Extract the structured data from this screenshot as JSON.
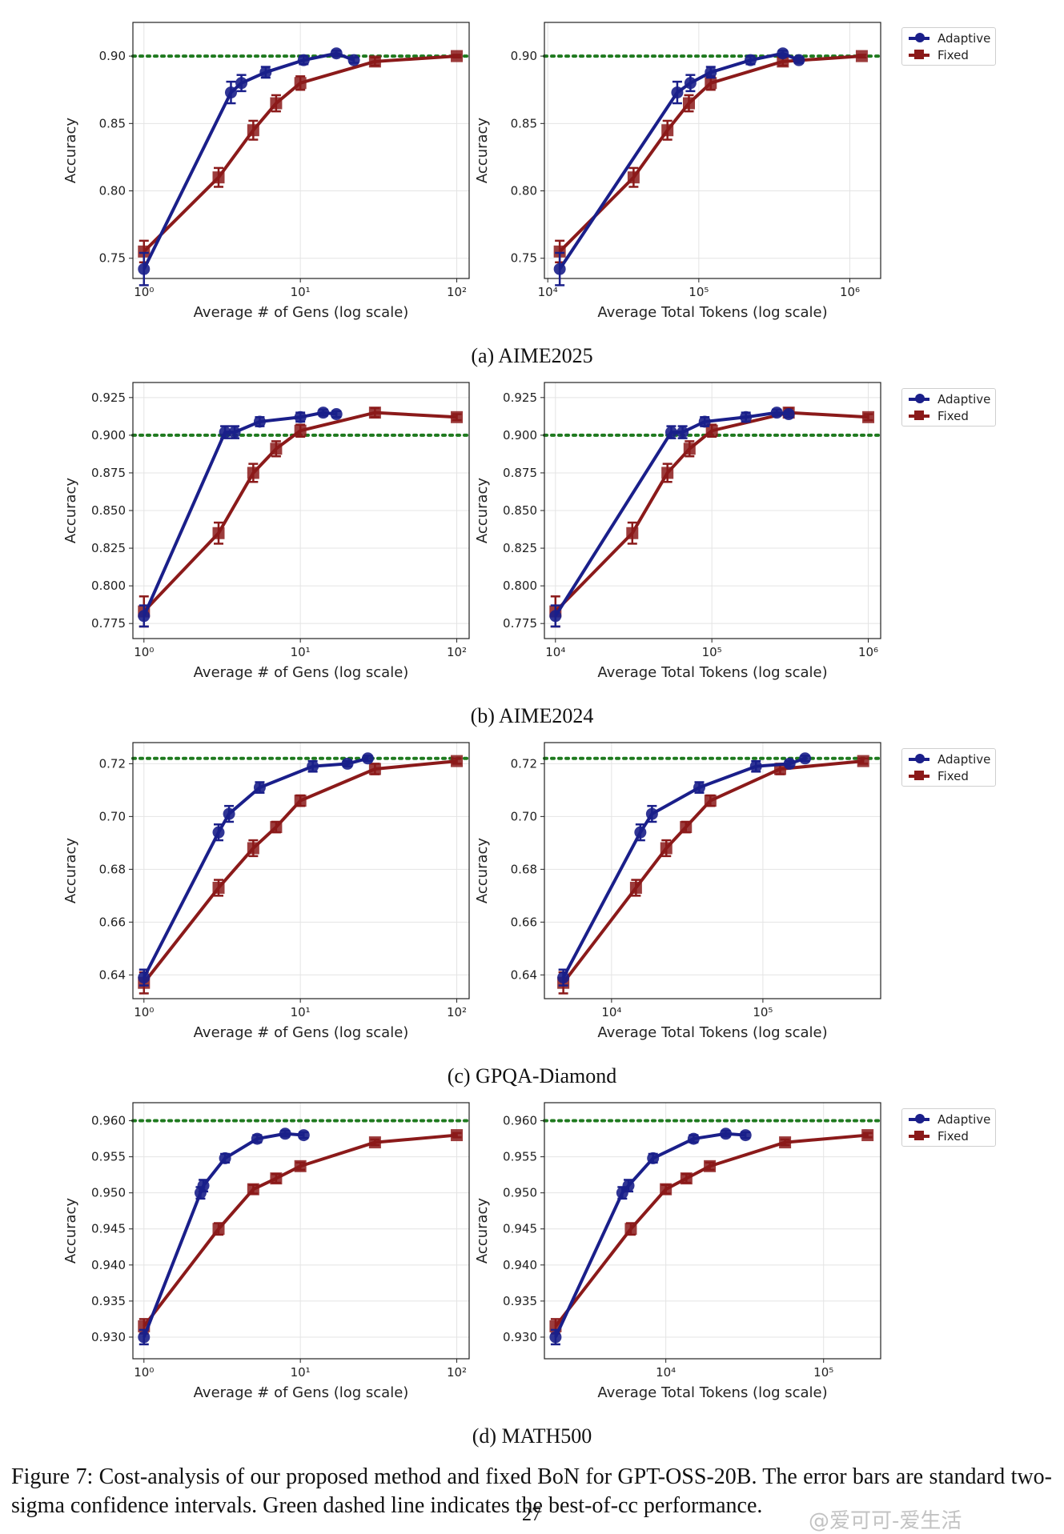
{
  "colors": {
    "adaptive": "#1a1f8a",
    "fixed": "#8b1a1a",
    "best": "#1f7a1f"
  },
  "legend": {
    "adaptive": "Adaptive",
    "fixed": "Fixed"
  },
  "subcaptions": [
    "(a) AIME2025",
    "(b) AIME2024",
    "(c) GPQA-Diamond",
    "(d) MATH500"
  ],
  "caption": "Figure 7: Cost-analysis of our proposed method and fixed BoN for GPT-OSS-20B. The error bars are standard two-sigma confidence intervals. Green dashed line indicates the best-of-cc performance.",
  "page_number": "27",
  "watermark": "@爱可可-爱生活",
  "chart_data": [
    {
      "type": "line",
      "xscale": "log",
      "xlabel": "Average # of Gens (log scale)",
      "ylabel": "Accuracy",
      "xlim": [
        0.85,
        120
      ],
      "ylim": [
        0.735,
        0.925
      ],
      "yticks": [
        0.75,
        0.8,
        0.85,
        0.9
      ],
      "ytick_labels": [
        "0.75",
        "0.80",
        "0.85",
        "0.90"
      ],
      "xticks": [
        1,
        10,
        100
      ],
      "xtick_labels": [
        "10⁰",
        "10¹",
        "10²"
      ],
      "best": 0.9,
      "series": [
        {
          "name": "Adaptive",
          "x": [
            1,
            3.6,
            4.2,
            6,
            10.5,
            17,
            22
          ],
          "y": [
            0.742,
            0.873,
            0.88,
            0.888,
            0.897,
            0.902,
            0.897
          ],
          "err": [
            0.012,
            0.008,
            0.006,
            0.004,
            0.003,
            0.002,
            0.002
          ]
        },
        {
          "name": "Fixed",
          "x": [
            1,
            3,
            5,
            7,
            10,
            30,
            100
          ],
          "y": [
            0.755,
            0.81,
            0.845,
            0.865,
            0.88,
            0.896,
            0.9
          ],
          "err": [
            0.008,
            0.007,
            0.007,
            0.006,
            0.005,
            0.003,
            0.001
          ]
        }
      ]
    },
    {
      "type": "line",
      "xscale": "log",
      "xlabel": "Average Total Tokens (log scale)",
      "ylabel": "Accuracy",
      "xlim": [
        9500,
        1600000
      ],
      "ylim": [
        0.735,
        0.925
      ],
      "yticks": [
        0.75,
        0.8,
        0.85,
        0.9
      ],
      "ytick_labels": [
        "0.75",
        "0.80",
        "0.85",
        "0.90"
      ],
      "xticks": [
        10000,
        100000,
        1000000
      ],
      "xtick_labels": [
        "10⁴",
        "10⁵",
        "10⁶"
      ],
      "best": 0.9,
      "series": [
        {
          "name": "Adaptive",
          "x": [
            12000,
            72000,
            88000,
            120000,
            220000,
            360000,
            460000
          ],
          "y": [
            0.742,
            0.873,
            0.88,
            0.888,
            0.897,
            0.902,
            0.897
          ],
          "err": [
            0.012,
            0.008,
            0.006,
            0.004,
            0.003,
            0.002,
            0.002
          ]
        },
        {
          "name": "Fixed",
          "x": [
            12000,
            37000,
            62000,
            86000,
            120000,
            360000,
            1200000
          ],
          "y": [
            0.755,
            0.81,
            0.845,
            0.865,
            0.88,
            0.896,
            0.9
          ],
          "err": [
            0.008,
            0.007,
            0.007,
            0.006,
            0.005,
            0.003,
            0.001
          ]
        }
      ]
    },
    {
      "type": "line",
      "xscale": "log",
      "xlabel": "Average # of Gens (log scale)",
      "ylabel": "Accuracy",
      "xlim": [
        0.85,
        120
      ],
      "ylim": [
        0.765,
        0.935
      ],
      "yticks": [
        0.775,
        0.8,
        0.825,
        0.85,
        0.875,
        0.9,
        0.925
      ],
      "ytick_labels": [
        "0.775",
        "0.800",
        "0.825",
        "0.850",
        "0.875",
        "0.900",
        "0.925"
      ],
      "xticks": [
        1,
        10,
        100
      ],
      "xtick_labels": [
        "10⁰",
        "10¹",
        "10²"
      ],
      "best": 0.9,
      "series": [
        {
          "name": "Adaptive",
          "x": [
            1,
            3.3,
            3.8,
            5.5,
            10,
            14,
            17
          ],
          "y": [
            0.78,
            0.902,
            0.902,
            0.909,
            0.912,
            0.915,
            0.914
          ],
          "err": [
            0.007,
            0.004,
            0.004,
            0.003,
            0.003,
            0.002,
            0.002
          ]
        },
        {
          "name": "Fixed",
          "x": [
            1,
            3,
            5,
            7,
            10,
            30,
            100
          ],
          "y": [
            0.783,
            0.835,
            0.875,
            0.891,
            0.903,
            0.915,
            0.912
          ],
          "err": [
            0.01,
            0.007,
            0.006,
            0.005,
            0.004,
            0.003,
            0.002
          ]
        }
      ]
    },
    {
      "type": "line",
      "xscale": "log",
      "xlabel": "Average Total Tokens (log scale)",
      "ylabel": "Accuracy",
      "xlim": [
        8500,
        1200000
      ],
      "ylim": [
        0.765,
        0.935
      ],
      "yticks": [
        0.775,
        0.8,
        0.825,
        0.85,
        0.875,
        0.9,
        0.925
      ],
      "ytick_labels": [
        "0.775",
        "0.800",
        "0.825",
        "0.850",
        "0.875",
        "0.900",
        "0.925"
      ],
      "xticks": [
        10000,
        100000,
        1000000
      ],
      "xtick_labels": [
        "10⁴",
        "10⁵",
        "10⁶"
      ],
      "best": 0.9,
      "series": [
        {
          "name": "Adaptive",
          "x": [
            10000,
            55000,
            65000,
            90000,
            165000,
            260000,
            310000
          ],
          "y": [
            0.78,
            0.902,
            0.902,
            0.909,
            0.912,
            0.915,
            0.914
          ],
          "err": [
            0.007,
            0.004,
            0.004,
            0.003,
            0.003,
            0.002,
            0.002
          ]
        },
        {
          "name": "Fixed",
          "x": [
            10000,
            31000,
            52000,
            72000,
            100000,
            310000,
            1000000
          ],
          "y": [
            0.783,
            0.835,
            0.875,
            0.891,
            0.903,
            0.915,
            0.912
          ],
          "err": [
            0.01,
            0.007,
            0.006,
            0.005,
            0.004,
            0.003,
            0.002
          ]
        }
      ]
    },
    {
      "type": "line",
      "xscale": "log",
      "xlabel": "Average # of Gens (log scale)",
      "ylabel": "Accuracy",
      "xlim": [
        0.85,
        120
      ],
      "ylim": [
        0.631,
        0.728
      ],
      "yticks": [
        0.64,
        0.66,
        0.68,
        0.7,
        0.72
      ],
      "ytick_labels": [
        "0.64",
        "0.66",
        "0.68",
        "0.70",
        "0.72"
      ],
      "xticks": [
        1,
        10,
        100
      ],
      "xtick_labels": [
        "10⁰",
        "10¹",
        "10²"
      ],
      "best": 0.722,
      "series": [
        {
          "name": "Adaptive",
          "x": [
            1,
            3,
            3.5,
            5.5,
            12,
            20,
            27
          ],
          "y": [
            0.639,
            0.694,
            0.701,
            0.711,
            0.719,
            0.72,
            0.722
          ],
          "err": [
            0.003,
            0.003,
            0.003,
            0.002,
            0.002,
            0.001,
            0.001
          ]
        },
        {
          "name": "Fixed",
          "x": [
            1,
            3,
            5,
            7,
            10,
            30,
            100
          ],
          "y": [
            0.637,
            0.673,
            0.688,
            0.696,
            0.706,
            0.718,
            0.721
          ],
          "err": [
            0.004,
            0.003,
            0.003,
            0.002,
            0.002,
            0.002,
            0.001
          ]
        }
      ]
    },
    {
      "type": "line",
      "xscale": "log",
      "xlabel": "Average Total Tokens (log scale)",
      "ylabel": "Accuracy",
      "xlim": [
        3600,
        600000
      ],
      "ylim": [
        0.631,
        0.728
      ],
      "yticks": [
        0.64,
        0.66,
        0.68,
        0.7,
        0.72
      ],
      "ytick_labels": [
        "0.64",
        "0.66",
        "0.68",
        "0.70",
        "0.72"
      ],
      "xticks": [
        10000,
        100000
      ],
      "xtick_labels": [
        "10⁴",
        "10⁵"
      ],
      "best": 0.722,
      "series": [
        {
          "name": "Adaptive",
          "x": [
            4800,
            15500,
            18500,
            38000,
            90000,
            150000,
            190000
          ],
          "y": [
            0.639,
            0.694,
            0.701,
            0.711,
            0.719,
            0.72,
            0.722
          ],
          "err": [
            0.003,
            0.003,
            0.003,
            0.002,
            0.002,
            0.001,
            0.001
          ]
        },
        {
          "name": "Fixed",
          "x": [
            4800,
            14500,
            23000,
            31000,
            45000,
            130000,
            460000
          ],
          "y": [
            0.637,
            0.673,
            0.688,
            0.696,
            0.706,
            0.718,
            0.721
          ],
          "err": [
            0.004,
            0.003,
            0.003,
            0.002,
            0.002,
            0.002,
            0.001
          ]
        }
      ]
    },
    {
      "type": "line",
      "xscale": "log",
      "xlabel": "Average # of Gens (log scale)",
      "ylabel": "Accuracy",
      "xlim": [
        0.85,
        120
      ],
      "ylim": [
        0.927,
        0.9625
      ],
      "yticks": [
        0.93,
        0.935,
        0.94,
        0.945,
        0.95,
        0.955,
        0.96
      ],
      "ytick_labels": [
        "0.930",
        "0.935",
        "0.940",
        "0.945",
        "0.950",
        "0.955",
        "0.960"
      ],
      "xticks": [
        1,
        10,
        100
      ],
      "xtick_labels": [
        "10⁰",
        "10¹",
        "10²"
      ],
      "best": 0.96,
      "series": [
        {
          "name": "Adaptive",
          "x": [
            1,
            2.3,
            2.4,
            3.3,
            5.3,
            8,
            10.5
          ],
          "y": [
            0.93,
            0.95,
            0.951,
            0.9548,
            0.9575,
            0.9582,
            0.958
          ],
          "err": [
            0.001,
            0.0008,
            0.0008,
            0.0006,
            0.0005,
            0.0004,
            0.0004
          ]
        },
        {
          "name": "Fixed",
          "x": [
            1,
            3,
            5,
            7,
            10,
            30,
            100
          ],
          "y": [
            0.9315,
            0.945,
            0.9505,
            0.952,
            0.9537,
            0.957,
            0.958
          ],
          "err": [
            0.001,
            0.0008,
            0.0006,
            0.0006,
            0.0005,
            0.0004,
            0.0003
          ]
        }
      ]
    },
    {
      "type": "line",
      "xscale": "log",
      "xlabel": "Average Total Tokens (log scale)",
      "ylabel": "Accuracy",
      "xlim": [
        1700,
        230000
      ],
      "ylim": [
        0.927,
        0.9625
      ],
      "yticks": [
        0.93,
        0.935,
        0.94,
        0.945,
        0.95,
        0.955,
        0.96
      ],
      "ytick_labels": [
        "0.930",
        "0.935",
        "0.940",
        "0.945",
        "0.950",
        "0.955",
        "0.960"
      ],
      "xticks": [
        10000,
        100000
      ],
      "xtick_labels": [
        "10⁴",
        "10⁵"
      ],
      "best": 0.96,
      "series": [
        {
          "name": "Adaptive",
          "x": [
            2000,
            5300,
            5800,
            8300,
            15000,
            24000,
            32000
          ],
          "y": [
            0.93,
            0.95,
            0.951,
            0.9548,
            0.9575,
            0.9582,
            0.958
          ],
          "err": [
            0.001,
            0.0008,
            0.0008,
            0.0006,
            0.0005,
            0.0004,
            0.0004
          ]
        },
        {
          "name": "Fixed",
          "x": [
            2000,
            6000,
            10000,
            13500,
            19000,
            57000,
            190000
          ],
          "y": [
            0.9315,
            0.945,
            0.9505,
            0.952,
            0.9537,
            0.957,
            0.958
          ],
          "err": [
            0.001,
            0.0008,
            0.0006,
            0.0006,
            0.0005,
            0.0004,
            0.0003
          ]
        }
      ]
    }
  ]
}
